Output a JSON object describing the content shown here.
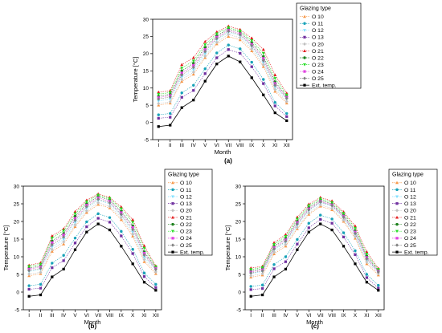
{
  "months": [
    "I",
    "II",
    "III",
    "IV",
    "V",
    "VI",
    "VII",
    "VIII",
    "IX",
    "X",
    "XI",
    "XII"
  ],
  "legend_title": "Glazing type",
  "series_styles": [
    {
      "name": "O 10",
      "color": "#f79646",
      "marker": "triangle-up"
    },
    {
      "name": "O 11",
      "color": "#17a2b8",
      "marker": "circle"
    },
    {
      "name": "O 12",
      "color": "#7fdfff",
      "marker": "triangle-down"
    },
    {
      "name": "O 13",
      "color": "#7030a0",
      "marker": "square"
    },
    {
      "name": "O 20",
      "color": "#c0c0c0",
      "marker": "diamond"
    },
    {
      "name": "O 21",
      "color": "#e31a1c",
      "marker": "triangle-up"
    },
    {
      "name": "O 22",
      "color": "#1a7f1a",
      "marker": "circle"
    },
    {
      "name": "O 23",
      "color": "#22dd22",
      "marker": "triangle-down"
    },
    {
      "name": "O 24",
      "color": "#e040e0",
      "marker": "square"
    },
    {
      "name": "O 25",
      "color": "#808080",
      "marker": "diamond"
    },
    {
      "name": "Ext. temp.",
      "color": "#000000",
      "marker": "square"
    }
  ],
  "chart_data": [
    {
      "type": "line",
      "panel_label": "(a)",
      "xlabel": "Month",
      "ylabel": "Temperature [°C]",
      "ylim": [
        -5,
        30
      ],
      "yticks": [
        -5,
        0,
        5,
        10,
        15,
        20,
        25,
        30
      ],
      "categories": [
        "I",
        "II",
        "III",
        "IV",
        "V",
        "VI",
        "VII",
        "VIII",
        "IX",
        "X",
        "XI",
        "XII"
      ],
      "series": [
        {
          "name": "O 10",
          "values": [
            5.0,
            5.6,
            11.9,
            14.0,
            18.8,
            22.8,
            25.0,
            24.0,
            20.8,
            16.2,
            9.0,
            5.6
          ]
        },
        {
          "name": "O 11",
          "values": [
            2.2,
            2.6,
            8.6,
            10.8,
            15.6,
            20.2,
            22.5,
            21.4,
            17.5,
            12.5,
            5.8,
            2.6
          ]
        },
        {
          "name": "O 12",
          "values": [
            6.2,
            6.8,
            13.2,
            15.3,
            20.0,
            24.0,
            26.2,
            25.2,
            22.0,
            17.4,
            10.2,
            6.8
          ]
        },
        {
          "name": "O 13",
          "values": [
            1.2,
            1.5,
            7.3,
            9.3,
            14.2,
            18.8,
            21.2,
            20.1,
            16.2,
            11.3,
            4.8,
            1.7
          ]
        },
        {
          "name": "O 20",
          "values": [
            5.5,
            6.0,
            12.5,
            14.6,
            19.3,
            23.3,
            25.6,
            24.6,
            21.4,
            16.8,
            9.6,
            6.1
          ]
        },
        {
          "name": "O 21",
          "values": [
            8.8,
            9.2,
            16.8,
            18.8,
            23.5,
            26.3,
            28.0,
            27.0,
            24.5,
            21.2,
            13.8,
            8.5
          ]
        },
        {
          "name": "O 22",
          "values": [
            7.6,
            8.2,
            15.0,
            17.2,
            21.8,
            25.2,
            27.2,
            26.2,
            23.2,
            19.2,
            11.8,
            7.6
          ]
        },
        {
          "name": "O 23",
          "values": [
            8.2,
            8.7,
            15.8,
            17.9,
            22.6,
            25.8,
            27.6,
            26.6,
            23.8,
            20.1,
            12.8,
            8.0
          ]
        },
        {
          "name": "O 24",
          "values": [
            7.2,
            7.8,
            14.4,
            16.6,
            21.2,
            24.8,
            26.8,
            25.8,
            22.7,
            18.6,
            11.3,
            7.3
          ]
        },
        {
          "name": "O 25",
          "values": [
            6.8,
            7.4,
            13.8,
            16.0,
            20.6,
            24.4,
            26.5,
            25.5,
            22.3,
            18.0,
            10.8,
            7.0
          ]
        },
        {
          "name": "Ext. temp.",
          "values": [
            -1.2,
            -0.8,
            4.3,
            6.5,
            12.0,
            17.0,
            19.3,
            17.6,
            13.0,
            8.0,
            2.8,
            0.5
          ]
        }
      ]
    },
    {
      "type": "line",
      "panel_label": "(b)",
      "xlabel": "Month",
      "ylabel": "Temperature [°C]",
      "ylim": [
        -5,
        30
      ],
      "yticks": [
        -5,
        0,
        5,
        10,
        15,
        20,
        25,
        30
      ],
      "categories": [
        "I",
        "II",
        "III",
        "IV",
        "V",
        "VI",
        "VII",
        "VIII",
        "IX",
        "X",
        "XI",
        "XII"
      ],
      "series": [
        {
          "name": "O 10",
          "values": [
            4.6,
            5.2,
            11.5,
            13.6,
            18.5,
            22.5,
            24.8,
            23.8,
            20.5,
            15.8,
            8.6,
            5.2
          ]
        },
        {
          "name": "O 11",
          "values": [
            1.8,
            2.2,
            8.2,
            10.4,
            15.3,
            19.9,
            22.2,
            21.1,
            17.2,
            12.1,
            5.4,
            2.2
          ]
        },
        {
          "name": "O 12",
          "values": [
            5.8,
            6.4,
            12.8,
            14.9,
            19.7,
            23.7,
            26.0,
            25.0,
            21.7,
            17.0,
            9.8,
            6.4
          ]
        },
        {
          "name": "O 13",
          "values": [
            0.8,
            1.1,
            6.9,
            8.9,
            13.9,
            18.5,
            20.9,
            19.8,
            15.9,
            10.9,
            4.4,
            1.3
          ]
        },
        {
          "name": "O 20",
          "values": [
            5.1,
            5.6,
            12.1,
            14.2,
            19.0,
            23.0,
            25.3,
            24.3,
            21.1,
            16.4,
            9.2,
            5.7
          ]
        },
        {
          "name": "O 21",
          "values": [
            7.6,
            8.3,
            15.9,
            17.9,
            22.8,
            26.0,
            27.8,
            26.8,
            24.1,
            20.5,
            13.1,
            7.4
          ]
        },
        {
          "name": "O 22",
          "values": [
            6.8,
            7.4,
            14.5,
            16.6,
            21.5,
            25.0,
            27.1,
            26.1,
            22.9,
            18.8,
            11.4,
            6.9
          ]
        },
        {
          "name": "O 23",
          "values": [
            7.3,
            7.9,
            15.3,
            17.4,
            22.2,
            25.6,
            27.5,
            26.5,
            23.6,
            19.8,
            12.4,
            7.2
          ]
        },
        {
          "name": "O 24",
          "values": [
            6.5,
            7.1,
            14.0,
            16.2,
            20.9,
            24.6,
            26.7,
            25.7,
            22.5,
            18.3,
            11.0,
            6.7
          ]
        },
        {
          "name": "O 25",
          "values": [
            6.1,
            6.7,
            13.4,
            15.6,
            20.3,
            24.2,
            26.3,
            25.3,
            22.0,
            17.7,
            10.5,
            6.4
          ]
        },
        {
          "name": "Ext. temp.",
          "values": [
            -1.2,
            -0.8,
            4.3,
            6.5,
            12.0,
            17.0,
            19.3,
            17.6,
            13.0,
            8.0,
            2.8,
            0.5
          ]
        }
      ]
    },
    {
      "type": "line",
      "panel_label": "(c)",
      "xlabel": "Month",
      "ylabel": "Temperature [°C]",
      "ylim": [
        -5,
        30
      ],
      "yticks": [
        -5,
        0,
        5,
        10,
        15,
        20,
        25,
        30
      ],
      "categories": [
        "I",
        "II",
        "III",
        "IV",
        "V",
        "VI",
        "VII",
        "VIII",
        "IX",
        "X",
        "XI",
        "XII"
      ],
      "series": [
        {
          "name": "O 10",
          "values": [
            4.2,
            4.8,
            10.8,
            13.0,
            17.9,
            22.0,
            24.3,
            23.3,
            20.0,
            15.2,
            8.0,
            4.8
          ]
        },
        {
          "name": "O 11",
          "values": [
            1.6,
            2.0,
            7.8,
            10.0,
            14.9,
            19.5,
            21.8,
            20.7,
            16.8,
            11.7,
            5.0,
            1.9
          ]
        },
        {
          "name": "O 12",
          "values": [
            5.2,
            5.8,
            11.9,
            14.1,
            18.9,
            23.0,
            25.3,
            24.3,
            21.0,
            16.2,
            9.0,
            5.7
          ]
        },
        {
          "name": "O 13",
          "values": [
            0.7,
            1.0,
            6.6,
            8.6,
            13.6,
            18.2,
            20.6,
            19.5,
            15.6,
            10.6,
            4.1,
            1.1
          ]
        },
        {
          "name": "O 20",
          "values": [
            4.6,
            5.2,
            11.3,
            13.5,
            18.3,
            22.4,
            24.7,
            23.7,
            20.4,
            15.7,
            8.5,
            5.2
          ]
        },
        {
          "name": "O 21",
          "values": [
            6.8,
            7.3,
            14.0,
            16.3,
            21.2,
            24.9,
            26.8,
            25.8,
            22.7,
            18.7,
            11.4,
            6.7
          ]
        },
        {
          "name": "O 22",
          "values": [
            6.0,
            6.6,
            13.0,
            15.2,
            20.1,
            24.0,
            26.0,
            25.0,
            21.8,
            17.4,
            10.2,
            6.1
          ]
        },
        {
          "name": "O 23",
          "values": [
            6.4,
            7.0,
            13.5,
            15.8,
            20.7,
            24.5,
            26.4,
            25.4,
            22.3,
            18.1,
            10.8,
            6.4
          ]
        },
        {
          "name": "O 24",
          "values": [
            5.7,
            6.3,
            12.6,
            14.8,
            19.7,
            23.6,
            25.7,
            24.7,
            21.5,
            17.0,
            9.8,
            5.9
          ]
        },
        {
          "name": "O 25",
          "values": [
            5.4,
            6.0,
            12.2,
            14.4,
            19.3,
            23.3,
            25.5,
            24.5,
            21.2,
            16.6,
            9.4,
            5.7
          ]
        },
        {
          "name": "Ext. temp.",
          "values": [
            -1.2,
            -0.8,
            4.3,
            6.5,
            12.0,
            17.0,
            19.3,
            17.6,
            13.0,
            8.0,
            2.8,
            0.5
          ]
        }
      ]
    }
  ]
}
